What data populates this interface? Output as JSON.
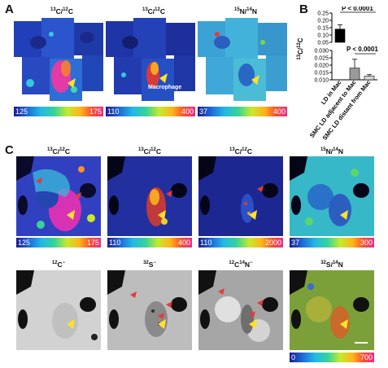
{
  "panel_labels": {
    "a": "A",
    "b": "B",
    "c": "C"
  },
  "row_a": [
    {
      "pre": "13",
      "el1": "C/",
      "pre2": "12",
      "el2": "C",
      "min": "125",
      "max": "175"
    },
    {
      "pre": "13",
      "el1": "C/",
      "pre2": "12",
      "el2": "C",
      "min": "110",
      "max": "400",
      "annotation": "Macrophage"
    },
    {
      "pre": "15",
      "el1": "N/",
      "pre2": "14",
      "el2": "N",
      "min": "37",
      "max": "400"
    }
  ],
  "row_c1": [
    {
      "pre": "13",
      "el1": "C/",
      "pre2": "12",
      "el2": "C",
      "min": "125",
      "max": "175"
    },
    {
      "pre": "13",
      "el1": "C/",
      "pre2": "12",
      "el2": "C",
      "min": "110",
      "max": "400"
    },
    {
      "pre": "13",
      "el1": "C/",
      "pre2": "12",
      "el2": "C",
      "min": "110",
      "max": "2000"
    },
    {
      "pre": "15",
      "el1": "N/",
      "pre2": "14",
      "el2": "N",
      "min": "37",
      "max": "300"
    }
  ],
  "row_c2": [
    {
      "pre": "12",
      "el1": "C",
      "pre2": "",
      "el2": "",
      "suffix": "−"
    },
    {
      "pre": "32",
      "el1": "S",
      "pre2": "",
      "el2": "",
      "suffix": "−"
    },
    {
      "pre": "12",
      "el1": "C",
      "pre2": "14",
      "el2": "N",
      "suffix": "−"
    },
    {
      "pre": "32",
      "el1": "S/",
      "pre2": "14",
      "el2": "N",
      "suffix": "",
      "min": "0",
      "max": "700"
    }
  ],
  "chart_data": {
    "type": "bar",
    "ylabel_pre": "13",
    "ylabel_mid": "C/",
    "ylabel_pre2": "12",
    "ylabel_end": "C",
    "categories": [
      "LD in Mac",
      "SMC LD adjacent to Mac",
      "SMC LD distant from Mac"
    ],
    "values": [
      0.14,
      0.018,
      0.0125
    ],
    "errors": [
      0.03,
      0.006,
      0.001
    ],
    "colors": [
      "#000000",
      "#9a9a9a",
      "#d6d6d6"
    ],
    "upper_ticks": [
      "0.25",
      "0.20",
      "0.15",
      "0.10",
      "0.05"
    ],
    "lower_ticks": [
      "0.030",
      "0.025",
      "0.020",
      "0.015",
      "0.010"
    ],
    "upper_ylim": [
      0.05,
      0.25
    ],
    "lower_ylim": [
      0.01,
      0.03
    ],
    "sig1": "P < 0.0001",
    "sig2": "P < 0.0001"
  }
}
